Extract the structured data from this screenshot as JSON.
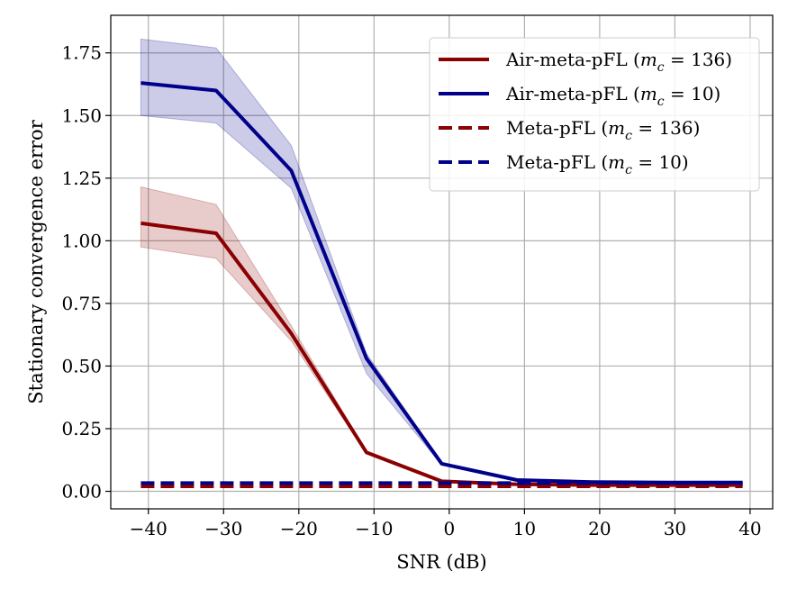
{
  "chart_data": {
    "type": "line",
    "title": "",
    "xlabel": "SNR (dB)",
    "ylabel": "Stationary convergence error",
    "xlim": [
      -45,
      43
    ],
    "ylim": [
      -0.07,
      1.9
    ],
    "grid": true,
    "legend_position": "top-right",
    "x_ticks": [
      -40,
      -30,
      -20,
      -10,
      0,
      10,
      20,
      30,
      40
    ],
    "x_tick_labels": [
      "−40",
      "−30",
      "−20",
      "−10",
      "0",
      "10",
      "20",
      "30",
      "40"
    ],
    "y_ticks": [
      0.0,
      0.25,
      0.5,
      0.75,
      1.0,
      1.25,
      1.5,
      1.75
    ],
    "y_tick_labels": [
      "0.00",
      "0.25",
      "0.50",
      "0.75",
      "1.00",
      "1.25",
      "1.50",
      "1.75"
    ],
    "series": [
      {
        "name": "Air-meta-pFL (m_c = 136)",
        "legend_prefix": "Air-meta-pFL (",
        "legend_var": "m",
        "legend_sub": "c",
        "legend_suffix": " = 136)",
        "color": "#8b0000",
        "dash": "solid",
        "x": [
          -41,
          -31,
          -21,
          -11,
          -1,
          9,
          19,
          29,
          39
        ],
        "values": [
          1.07,
          1.03,
          0.63,
          0.155,
          0.04,
          0.028,
          0.025,
          0.025,
          0.025
        ],
        "lower": [
          0.975,
          0.93,
          0.6,
          0.15,
          0.035,
          0.026,
          0.024,
          0.024,
          0.024
        ],
        "upper": [
          1.215,
          1.145,
          0.66,
          0.16,
          0.045,
          0.03,
          0.027,
          0.027,
          0.027
        ]
      },
      {
        "name": "Air-meta-pFL (m_c = 10)",
        "legend_prefix": "Air-meta-pFL (",
        "legend_var": "m",
        "legend_sub": "c",
        "legend_suffix": " = 10)",
        "color": "#00008b",
        "dash": "solid",
        "x": [
          -41,
          -31,
          -21,
          -11,
          -1,
          9,
          19,
          29,
          39
        ],
        "values": [
          1.63,
          1.6,
          1.28,
          0.53,
          0.11,
          0.045,
          0.037,
          0.035,
          0.035
        ],
        "lower": [
          1.5,
          1.47,
          1.21,
          0.47,
          0.105,
          0.043,
          0.035,
          0.033,
          0.033
        ],
        "upper": [
          1.805,
          1.77,
          1.38,
          0.55,
          0.115,
          0.047,
          0.039,
          0.037,
          0.037
        ]
      },
      {
        "name": "Meta-pFL (m_c = 136)",
        "legend_prefix": "Meta-pFL (",
        "legend_var": "m",
        "legend_sub": "c",
        "legend_suffix": " = 136)",
        "color": "#8b0000",
        "dash": "dashed",
        "x": [
          -41,
          -31,
          -21,
          -11,
          -1,
          9,
          19,
          29,
          39
        ],
        "values": [
          0.02,
          0.02,
          0.02,
          0.02,
          0.02,
          0.02,
          0.02,
          0.02,
          0.02
        ]
      },
      {
        "name": "Meta-pFL (m_c = 10)",
        "legend_prefix": "Meta-pFL (",
        "legend_var": "m",
        "legend_sub": "c",
        "legend_suffix": " = 10)",
        "color": "#00008b",
        "dash": "dashed",
        "x": [
          -41,
          -31,
          -21,
          -11,
          -1,
          9,
          19,
          29,
          39
        ],
        "values": [
          0.033,
          0.033,
          0.033,
          0.033,
          0.033,
          0.033,
          0.033,
          0.033,
          0.033
        ]
      }
    ]
  }
}
